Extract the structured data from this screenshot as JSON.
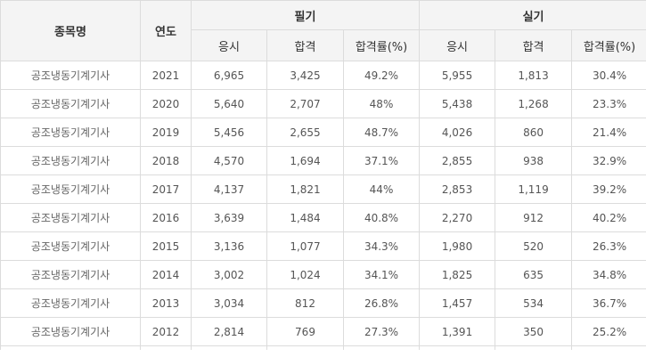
{
  "table": {
    "headers": {
      "name": "종목명",
      "year": "연도",
      "written": "필기",
      "practical": "실기",
      "applicants": "응시",
      "passed": "합격",
      "pass_rate": "합격률(%)"
    },
    "rows": [
      {
        "name": "공조냉동기계기사",
        "year": "2021",
        "w_app": "6,965",
        "w_pass": "3,425",
        "w_rate": "49.2%",
        "p_app": "5,955",
        "p_pass": "1,813",
        "p_rate": "30.4%"
      },
      {
        "name": "공조냉동기계기사",
        "year": "2020",
        "w_app": "5,640",
        "w_pass": "2,707",
        "w_rate": "48%",
        "p_app": "5,438",
        "p_pass": "1,268",
        "p_rate": "23.3%"
      },
      {
        "name": "공조냉동기계기사",
        "year": "2019",
        "w_app": "5,456",
        "w_pass": "2,655",
        "w_rate": "48.7%",
        "p_app": "4,026",
        "p_pass": "860",
        "p_rate": "21.4%"
      },
      {
        "name": "공조냉동기계기사",
        "year": "2018",
        "w_app": "4,570",
        "w_pass": "1,694",
        "w_rate": "37.1%",
        "p_app": "2,855",
        "p_pass": "938",
        "p_rate": "32.9%"
      },
      {
        "name": "공조냉동기계기사",
        "year": "2017",
        "w_app": "4,137",
        "w_pass": "1,821",
        "w_rate": "44%",
        "p_app": "2,853",
        "p_pass": "1,119",
        "p_rate": "39.2%"
      },
      {
        "name": "공조냉동기계기사",
        "year": "2016",
        "w_app": "3,639",
        "w_pass": "1,484",
        "w_rate": "40.8%",
        "p_app": "2,270",
        "p_pass": "912",
        "p_rate": "40.2%"
      },
      {
        "name": "공조냉동기계기사",
        "year": "2015",
        "w_app": "3,136",
        "w_pass": "1,077",
        "w_rate": "34.3%",
        "p_app": "1,980",
        "p_pass": "520",
        "p_rate": "26.3%"
      },
      {
        "name": "공조냉동기계기사",
        "year": "2014",
        "w_app": "3,002",
        "w_pass": "1,024",
        "w_rate": "34.1%",
        "p_app": "1,825",
        "p_pass": "635",
        "p_rate": "34.8%"
      },
      {
        "name": "공조냉동기계기사",
        "year": "2013",
        "w_app": "3,034",
        "w_pass": "812",
        "w_rate": "26.8%",
        "p_app": "1,457",
        "p_pass": "534",
        "p_rate": "36.7%"
      },
      {
        "name": "공조냉동기계기사",
        "year": "2012",
        "w_app": "2,814",
        "w_pass": "769",
        "w_rate": "27.3%",
        "p_app": "1,391",
        "p_pass": "350",
        "p_rate": "25.2%"
      }
    ]
  }
}
